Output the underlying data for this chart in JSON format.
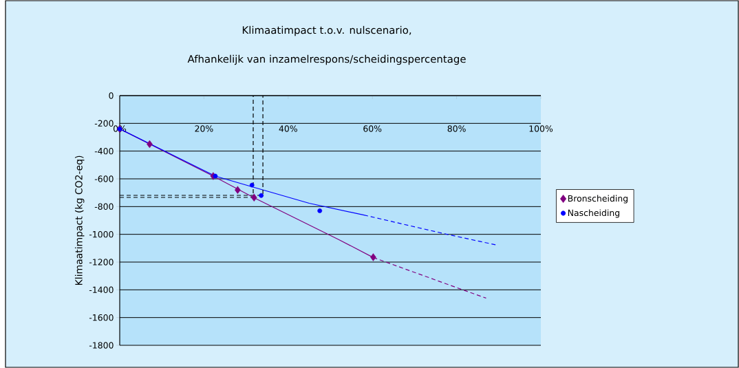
{
  "chart_data": {
    "type": "scatter",
    "title": "Klimaatimpact t.o.v. nulscenario,",
    "subtitle": "Afhankelijk van inzamelrespons/scheidingspercentage",
    "ylabel": "Klimaatimpact (kg CO2-eq)",
    "xlim": [
      0,
      100
    ],
    "ylim": [
      -1800,
      0
    ],
    "xticks": [
      {
        "value": 0,
        "label": "0%"
      },
      {
        "value": 20,
        "label": "20%"
      },
      {
        "value": 40,
        "label": "40%"
      },
      {
        "value": 60,
        "label": "60%"
      },
      {
        "value": 80,
        "label": "80%"
      },
      {
        "value": 100,
        "label": "100%"
      }
    ],
    "yticks": [
      0,
      -200,
      -400,
      -600,
      -800,
      -1000,
      -1200,
      -1400,
      -1600,
      -1800
    ],
    "grid": "y",
    "legend": "right",
    "series": [
      {
        "name": "Bronscheiding",
        "marker": "diamond",
        "color": "#800080",
        "x": [
          0,
          7.1,
          22.2,
          28.0,
          31.9,
          60.2
        ],
        "values": [
          -240,
          -350,
          -580,
          -680,
          -735,
          -1165
        ]
      },
      {
        "name": "Nascheiding",
        "marker": "circle",
        "color": "#0000ff",
        "x": [
          0,
          22.7,
          31.4,
          33.6,
          47.5
        ],
        "values": [
          -240,
          -580,
          -645,
          -720,
          -830
        ]
      },
      {
        "type": "line",
        "marker": "none",
        "line_style": "solid",
        "color": "#800080",
        "x": [
          0,
          22.2,
          31.9,
          51.9,
          60.2
        ],
        "values": [
          -240,
          -580,
          -736,
          -1036,
          -1167
        ]
      },
      {
        "type": "line",
        "marker": "none",
        "line_style": "dashed",
        "color": "#800080",
        "x": [
          60.2,
          81,
          87
        ],
        "values": [
          -1167,
          -1395,
          -1460
        ]
      },
      {
        "type": "line",
        "marker": "none",
        "line_style": "solid",
        "color": "#0000ff",
        "x": [
          0,
          22.7,
          31.4,
          45,
          58
        ],
        "values": [
          -240,
          -580,
          -657,
          -776,
          -861
        ]
      },
      {
        "type": "line",
        "marker": "none",
        "line_style": "dashed",
        "color": "#0000ff",
        "x": [
          58,
          77,
          89.6
        ],
        "values": [
          -861,
          -995,
          -1078
        ]
      },
      {
        "type": "line",
        "marker": "none",
        "line_style": "dashed",
        "color": "#000000",
        "x": [
          0,
          31.7,
          31.7
        ],
        "values": [
          -734,
          -734,
          0
        ]
      },
      {
        "type": "line",
        "marker": "none",
        "line_style": "dashed",
        "color": "#000000",
        "x": [
          0,
          34.0,
          34.0
        ],
        "values": [
          -719,
          -719,
          0
        ]
      }
    ]
  }
}
